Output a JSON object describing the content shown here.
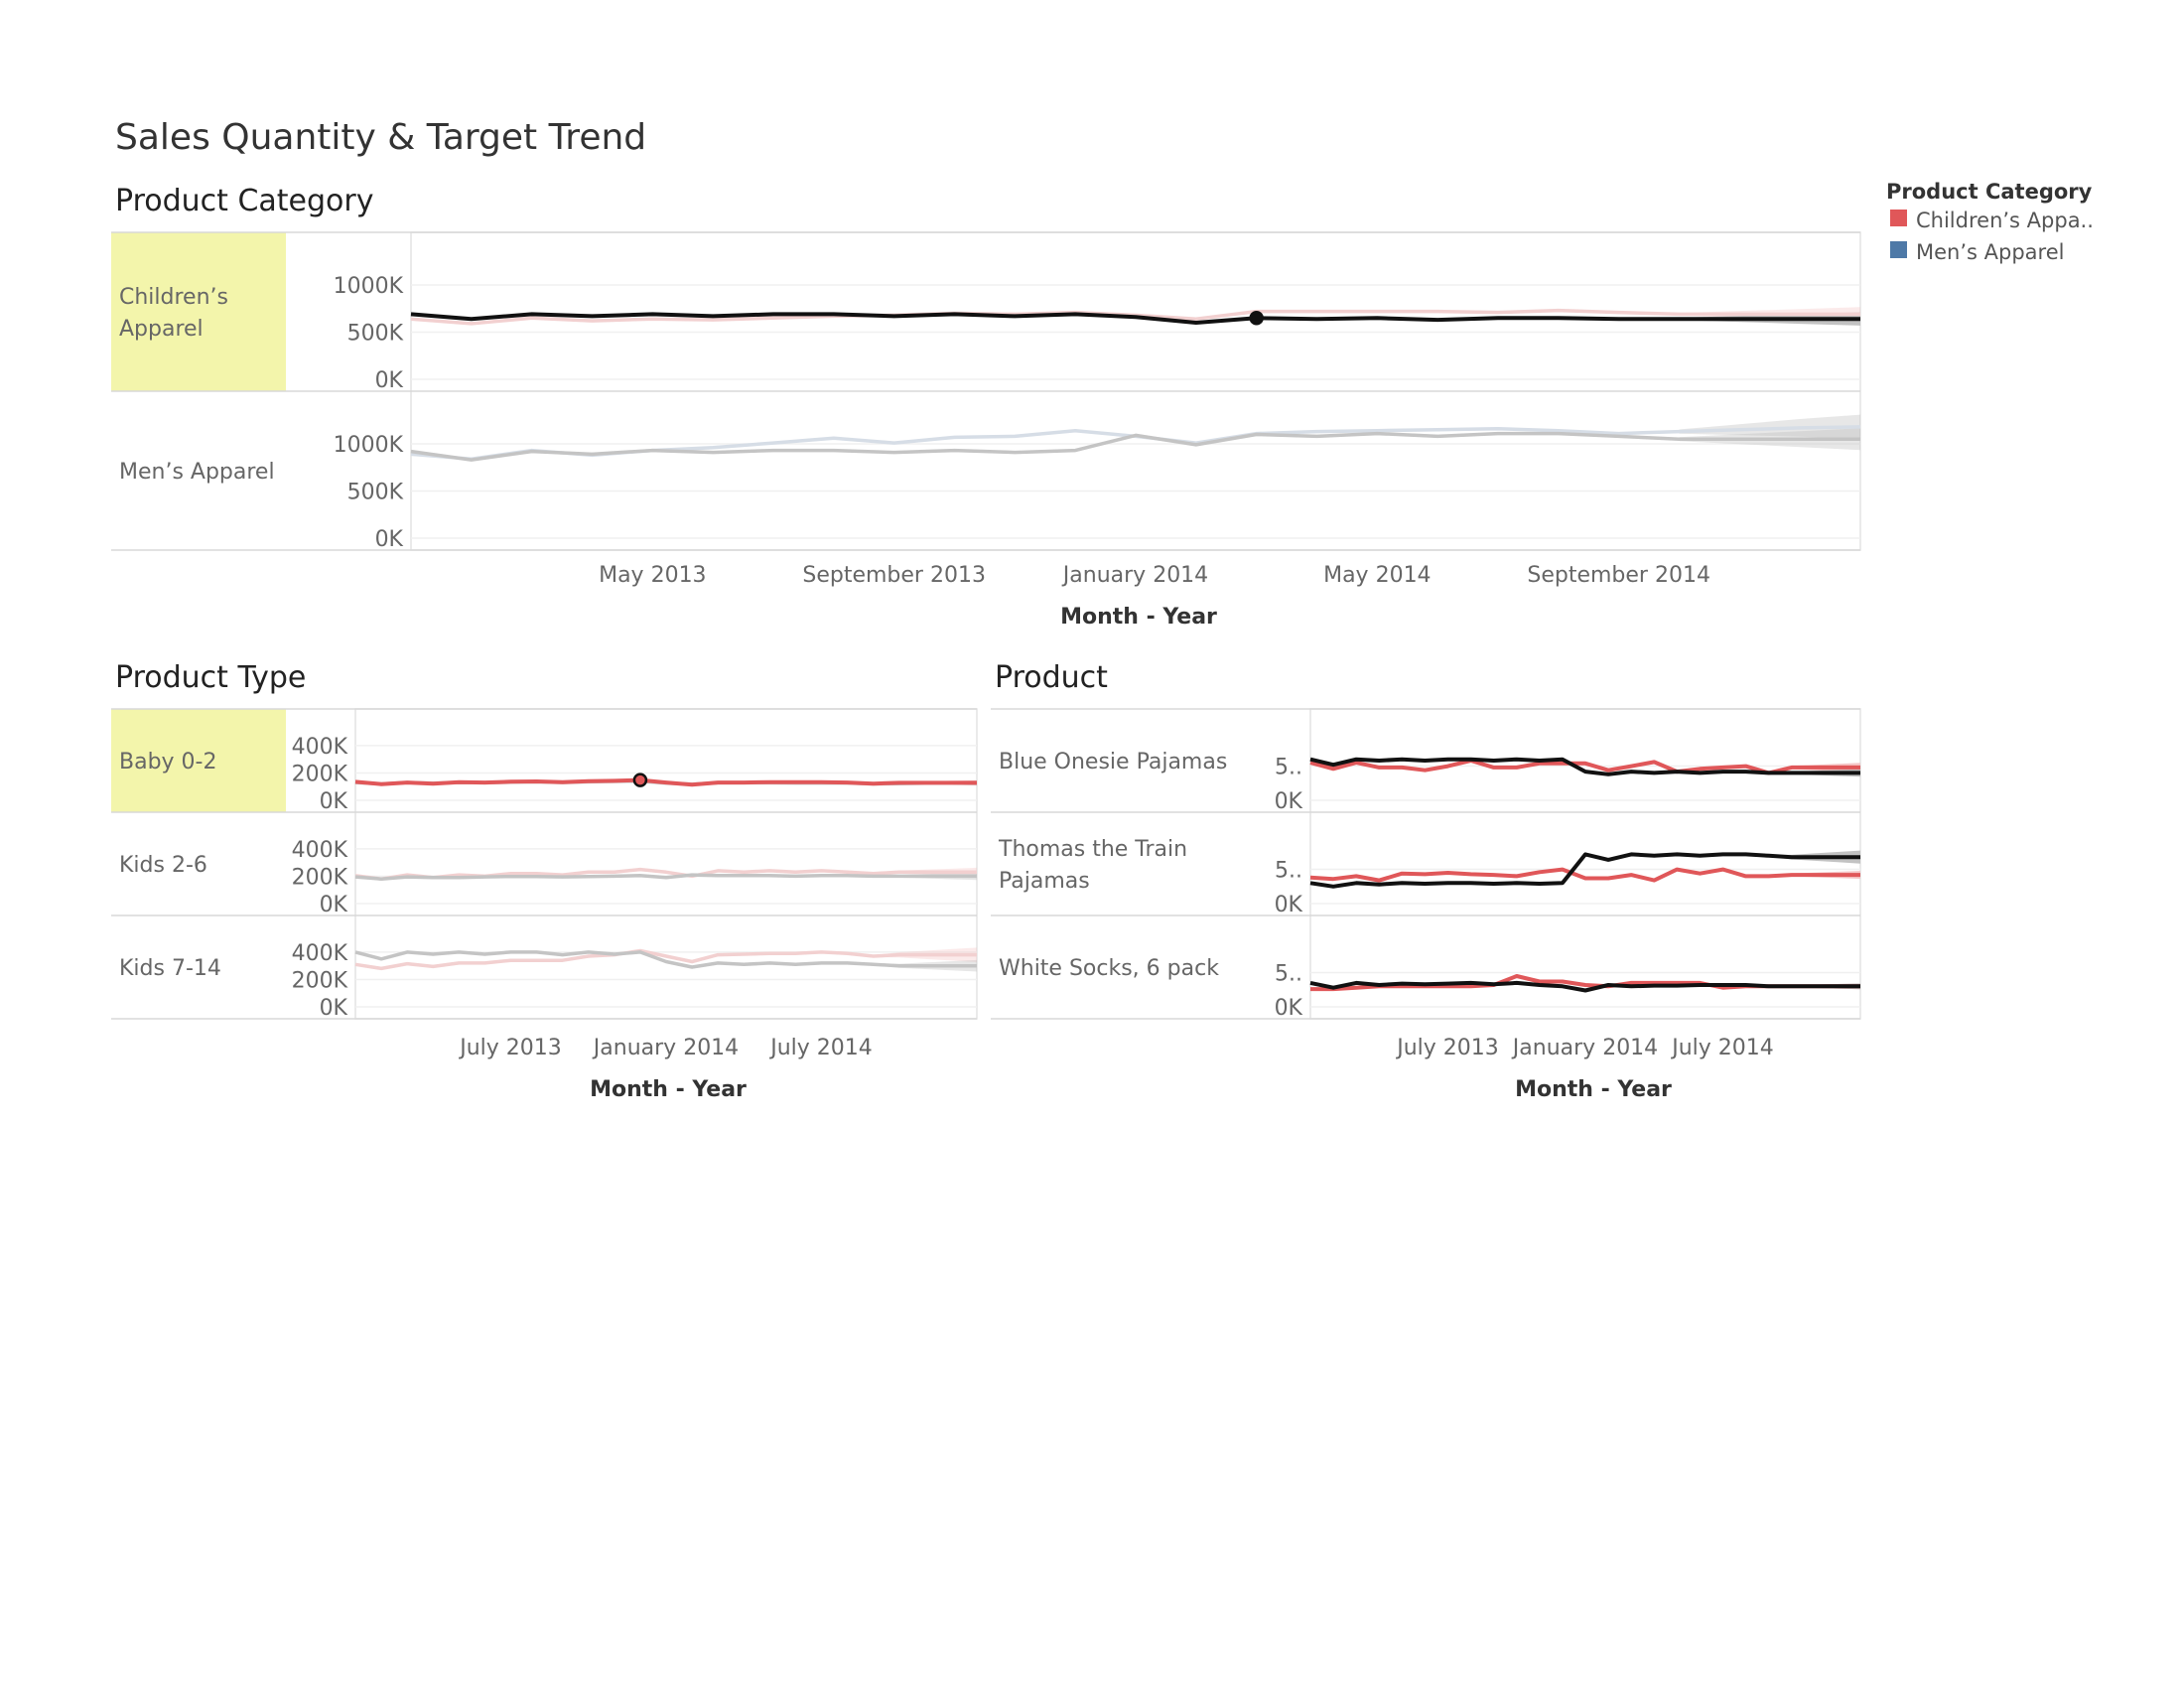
{
  "title": "Sales Quantity & Target Trend",
  "legend": {
    "title": "Product Category",
    "items": [
      {
        "label": "Children’s Appa..",
        "color": "#e05759"
      },
      {
        "label": "Men’s Apparel",
        "color": "#4e79a7"
      }
    ]
  },
  "colors": {
    "highlight_bg": "#f3f5ab",
    "selected_red": "#e05759",
    "selected_black": "#111111",
    "faded_red": "#f2d0d0",
    "faded_black": "#c4c4c4",
    "faded_blue": "#d6dde6",
    "forecast_red": "#f4c2c3",
    "forecast_grey": "#bbbbbb"
  },
  "chart_data": [
    {
      "id": "category",
      "type": "line",
      "section_title": "Product Category",
      "xlabel": "Month - Year",
      "x_ticks": [
        "May 2013",
        "September 2013",
        "January 2014",
        "May 2014",
        "September 2014"
      ],
      "x_tick_months": [
        4,
        8,
        12,
        16,
        20
      ],
      "x_range_months": [
        0,
        24
      ],
      "forecast_start_month": 21,
      "y_ticks": [
        "1000K",
        "500K",
        "0K"
      ],
      "ylim": [
        0,
        1200000
      ],
      "rows": [
        {
          "label": "Children’s Apparel",
          "highlighted": true,
          "target_style": "selected_black",
          "actual_style": "faded_red",
          "marker_month": 14,
          "target": [
            690000,
            640000,
            690000,
            670000,
            690000,
            670000,
            690000,
            690000,
            670000,
            690000,
            670000,
            690000,
            660000,
            600000,
            650000,
            640000,
            650000,
            630000,
            650000,
            650000,
            640000,
            640000,
            640000,
            640000,
            640000
          ],
          "actual": [
            640000,
            590000,
            650000,
            620000,
            640000,
            630000,
            650000,
            670000,
            680000,
            700000,
            690000,
            710000,
            680000,
            640000,
            720000,
            720000,
            720000,
            720000,
            710000,
            730000,
            710000,
            690000,
            690000,
            690000,
            690000
          ]
        },
        {
          "label": "Men’s Apparel",
          "highlighted": false,
          "target_style": "faded_black",
          "actual_style": "faded_blue",
          "target": [
            920000,
            830000,
            920000,
            890000,
            930000,
            910000,
            930000,
            930000,
            910000,
            930000,
            910000,
            930000,
            1090000,
            990000,
            1100000,
            1080000,
            1110000,
            1080000,
            1110000,
            1110000,
            1080000,
            1050000,
            1050000,
            1050000,
            1050000
          ],
          "actual": [
            890000,
            840000,
            930000,
            880000,
            930000,
            960000,
            1010000,
            1060000,
            1010000,
            1070000,
            1080000,
            1140000,
            1080000,
            1010000,
            1110000,
            1130000,
            1140000,
            1150000,
            1160000,
            1140000,
            1110000,
            1130000,
            1150000,
            1170000,
            1180000
          ]
        }
      ]
    },
    {
      "id": "type",
      "type": "line",
      "section_title": "Product Type",
      "xlabel": "Month - Year",
      "x_ticks": [
        "July 2013",
        "January 2014",
        "July 2014"
      ],
      "x_tick_months": [
        6,
        12,
        18
      ],
      "x_range_months": [
        0,
        24
      ],
      "forecast_start_month": 20,
      "y_ticks": [
        "400K",
        "200K",
        "0K"
      ],
      "ylim": [
        0,
        450000
      ],
      "rows": [
        {
          "label": "Baby 0-2",
          "highlighted": true,
          "target_style": "faded_black",
          "actual_style": "selected_red",
          "marker_month": 11,
          "target": [
            130000,
            120000,
            130000,
            125000,
            130000,
            128000,
            132000,
            135000,
            130000,
            135000,
            138000,
            140000,
            125000,
            118000,
            128000,
            128000,
            128000,
            126000,
            126000,
            126000,
            120000,
            122000,
            125000,
            126000,
            126000
          ],
          "actual": [
            135000,
            118000,
            130000,
            122000,
            132000,
            130000,
            136000,
            138000,
            132000,
            140000,
            142000,
            148000,
            130000,
            115000,
            130000,
            130000,
            133000,
            132000,
            132000,
            130000,
            122000,
            128000,
            128000,
            128000,
            128000
          ]
        },
        {
          "label": "Kids 2-6",
          "highlighted": false,
          "target_style": "faded_black",
          "actual_style": "faded_red",
          "target": [
            195000,
            180000,
            195000,
            190000,
            190000,
            195000,
            198000,
            198000,
            195000,
            198000,
            200000,
            205000,
            190000,
            210000,
            205000,
            205000,
            205000,
            200000,
            205000,
            205000,
            200000,
            200000,
            200000,
            200000,
            200000
          ],
          "actual": [
            205000,
            180000,
            210000,
            190000,
            210000,
            200000,
            220000,
            220000,
            210000,
            230000,
            230000,
            250000,
            230000,
            200000,
            240000,
            230000,
            240000,
            230000,
            240000,
            230000,
            220000,
            230000,
            230000,
            230000,
            230000
          ]
        },
        {
          "label": "Kids 7-14",
          "highlighted": false,
          "target_style": "faded_black",
          "actual_style": "faded_red",
          "target": [
            400000,
            350000,
            400000,
            385000,
            400000,
            385000,
            400000,
            400000,
            380000,
            400000,
            385000,
            400000,
            330000,
            290000,
            320000,
            310000,
            320000,
            310000,
            320000,
            320000,
            310000,
            300000,
            300000,
            300000,
            300000
          ],
          "actual": [
            310000,
            280000,
            315000,
            295000,
            320000,
            320000,
            340000,
            340000,
            340000,
            370000,
            380000,
            410000,
            370000,
            330000,
            380000,
            385000,
            390000,
            390000,
            400000,
            390000,
            370000,
            380000,
            380000,
            380000,
            380000
          ]
        }
      ]
    },
    {
      "id": "product",
      "type": "line",
      "section_title": "Product",
      "xlabel": "Month - Year",
      "x_ticks": [
        "July 2013",
        "January 2014",
        "July 2014"
      ],
      "x_tick_months": [
        6,
        12,
        18
      ],
      "x_range_months": [
        0,
        24
      ],
      "forecast_start_month": 20,
      "y_ticks": [
        "5..",
        "0K"
      ],
      "ylim": [
        0,
        90000
      ],
      "rows": [
        {
          "label": "Blue Onesie Pajamas",
          "highlighted": false,
          "target_style": "selected_black",
          "actual_style": "selected_red",
          "target": [
            60000,
            52000,
            60000,
            58000,
            60000,
            58000,
            60000,
            60000,
            58000,
            60000,
            58000,
            60000,
            42000,
            38000,
            42000,
            40000,
            42000,
            40000,
            42000,
            42000,
            40000,
            40000,
            40000,
            40000,
            40000
          ],
          "actual": [
            55000,
            46000,
            55000,
            48000,
            48000,
            44000,
            50000,
            58000,
            48000,
            48000,
            54000,
            54000,
            54000,
            44000,
            50000,
            56000,
            42000,
            46000,
            48000,
            50000,
            40000,
            48000,
            48000,
            48000,
            48000
          ]
        },
        {
          "label": "Thomas the Train Pajamas",
          "highlighted": false,
          "target_style": "selected_black",
          "actual_style": "selected_red",
          "target": [
            30000,
            25000,
            30000,
            28000,
            30000,
            29000,
            30000,
            30000,
            29000,
            30000,
            29000,
            30000,
            72000,
            64000,
            72000,
            70000,
            72000,
            70000,
            72000,
            72000,
            70000,
            68000,
            68000,
            68000,
            68000
          ],
          "actual": [
            38000,
            36000,
            40000,
            34000,
            44000,
            43000,
            45000,
            43000,
            42000,
            40000,
            46000,
            50000,
            37000,
            37000,
            42000,
            34000,
            50000,
            44000,
            50000,
            40000,
            40000,
            42000,
            42000,
            42000,
            42000
          ]
        },
        {
          "label": "White Socks, 6 pack",
          "highlighted": false,
          "target_style": "selected_black",
          "actual_style": "selected_red",
          "target": [
            35000,
            28000,
            35000,
            32000,
            34000,
            33000,
            34000,
            35000,
            33000,
            35000,
            32000,
            30000,
            24000,
            32000,
            30000,
            31000,
            31000,
            32000,
            32000,
            32000,
            30000,
            30000,
            30000,
            30000,
            30000
          ],
          "actual": [
            26000,
            26000,
            28000,
            30000,
            30000,
            30000,
            30000,
            30000,
            32000,
            45000,
            37000,
            37000,
            32000,
            30000,
            35000,
            35000,
            35000,
            35000,
            28000,
            30000,
            30000,
            30000,
            30000,
            30000,
            30000
          ]
        }
      ]
    }
  ]
}
